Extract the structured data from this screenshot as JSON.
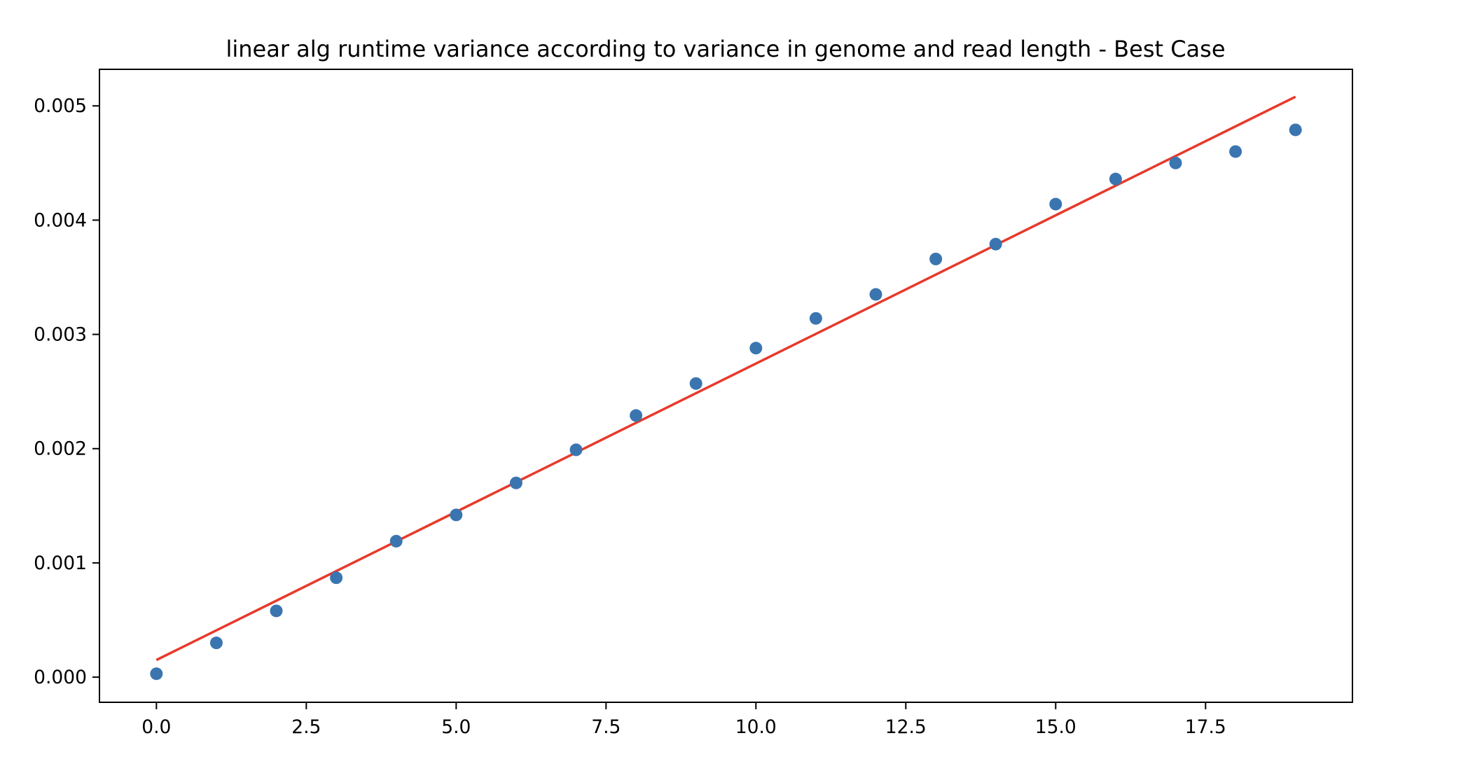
{
  "chart_data": {
    "type": "scatter",
    "title": "linear alg runtime variance according to variance in genome and read length - Best Case",
    "xlabel": "",
    "ylabel": "",
    "xlim": [
      -0.95,
      19.95
    ],
    "ylim": [
      -0.00022,
      0.00532
    ],
    "x_ticks": [
      {
        "value": 0.0,
        "label": "0.0"
      },
      {
        "value": 2.5,
        "label": "2.5"
      },
      {
        "value": 5.0,
        "label": "5.0"
      },
      {
        "value": 7.5,
        "label": "7.5"
      },
      {
        "value": 10.0,
        "label": "10.0"
      },
      {
        "value": 12.5,
        "label": "12.5"
      },
      {
        "value": 15.0,
        "label": "15.0"
      },
      {
        "value": 17.5,
        "label": "17.5"
      }
    ],
    "y_ticks": [
      {
        "value": 0.0,
        "label": "0.000"
      },
      {
        "value": 0.001,
        "label": "0.001"
      },
      {
        "value": 0.002,
        "label": "0.002"
      },
      {
        "value": 0.003,
        "label": "0.003"
      },
      {
        "value": 0.004,
        "label": "0.004"
      },
      {
        "value": 0.005,
        "label": "0.005"
      }
    ],
    "grid": false,
    "legend": "none",
    "series": [
      {
        "kind": "scatter",
        "color": "#3a75b0",
        "x": [
          0,
          1,
          2,
          3,
          4,
          5,
          6,
          7,
          8,
          9,
          10,
          11,
          12,
          13,
          14,
          15,
          16,
          17,
          18,
          19
        ],
        "y": [
          3e-05,
          0.0003,
          0.00058,
          0.00087,
          0.00119,
          0.00142,
          0.0017,
          0.00199,
          0.00229,
          0.00257,
          0.00288,
          0.00314,
          0.00335,
          0.00366,
          0.00379,
          0.00414,
          0.00436,
          0.0045,
          0.0046,
          0.00479
        ]
      },
      {
        "kind": "line",
        "color": "#e8392a",
        "x": [
          0,
          19
        ],
        "y": [
          0.00015,
          0.00508
        ]
      }
    ]
  }
}
